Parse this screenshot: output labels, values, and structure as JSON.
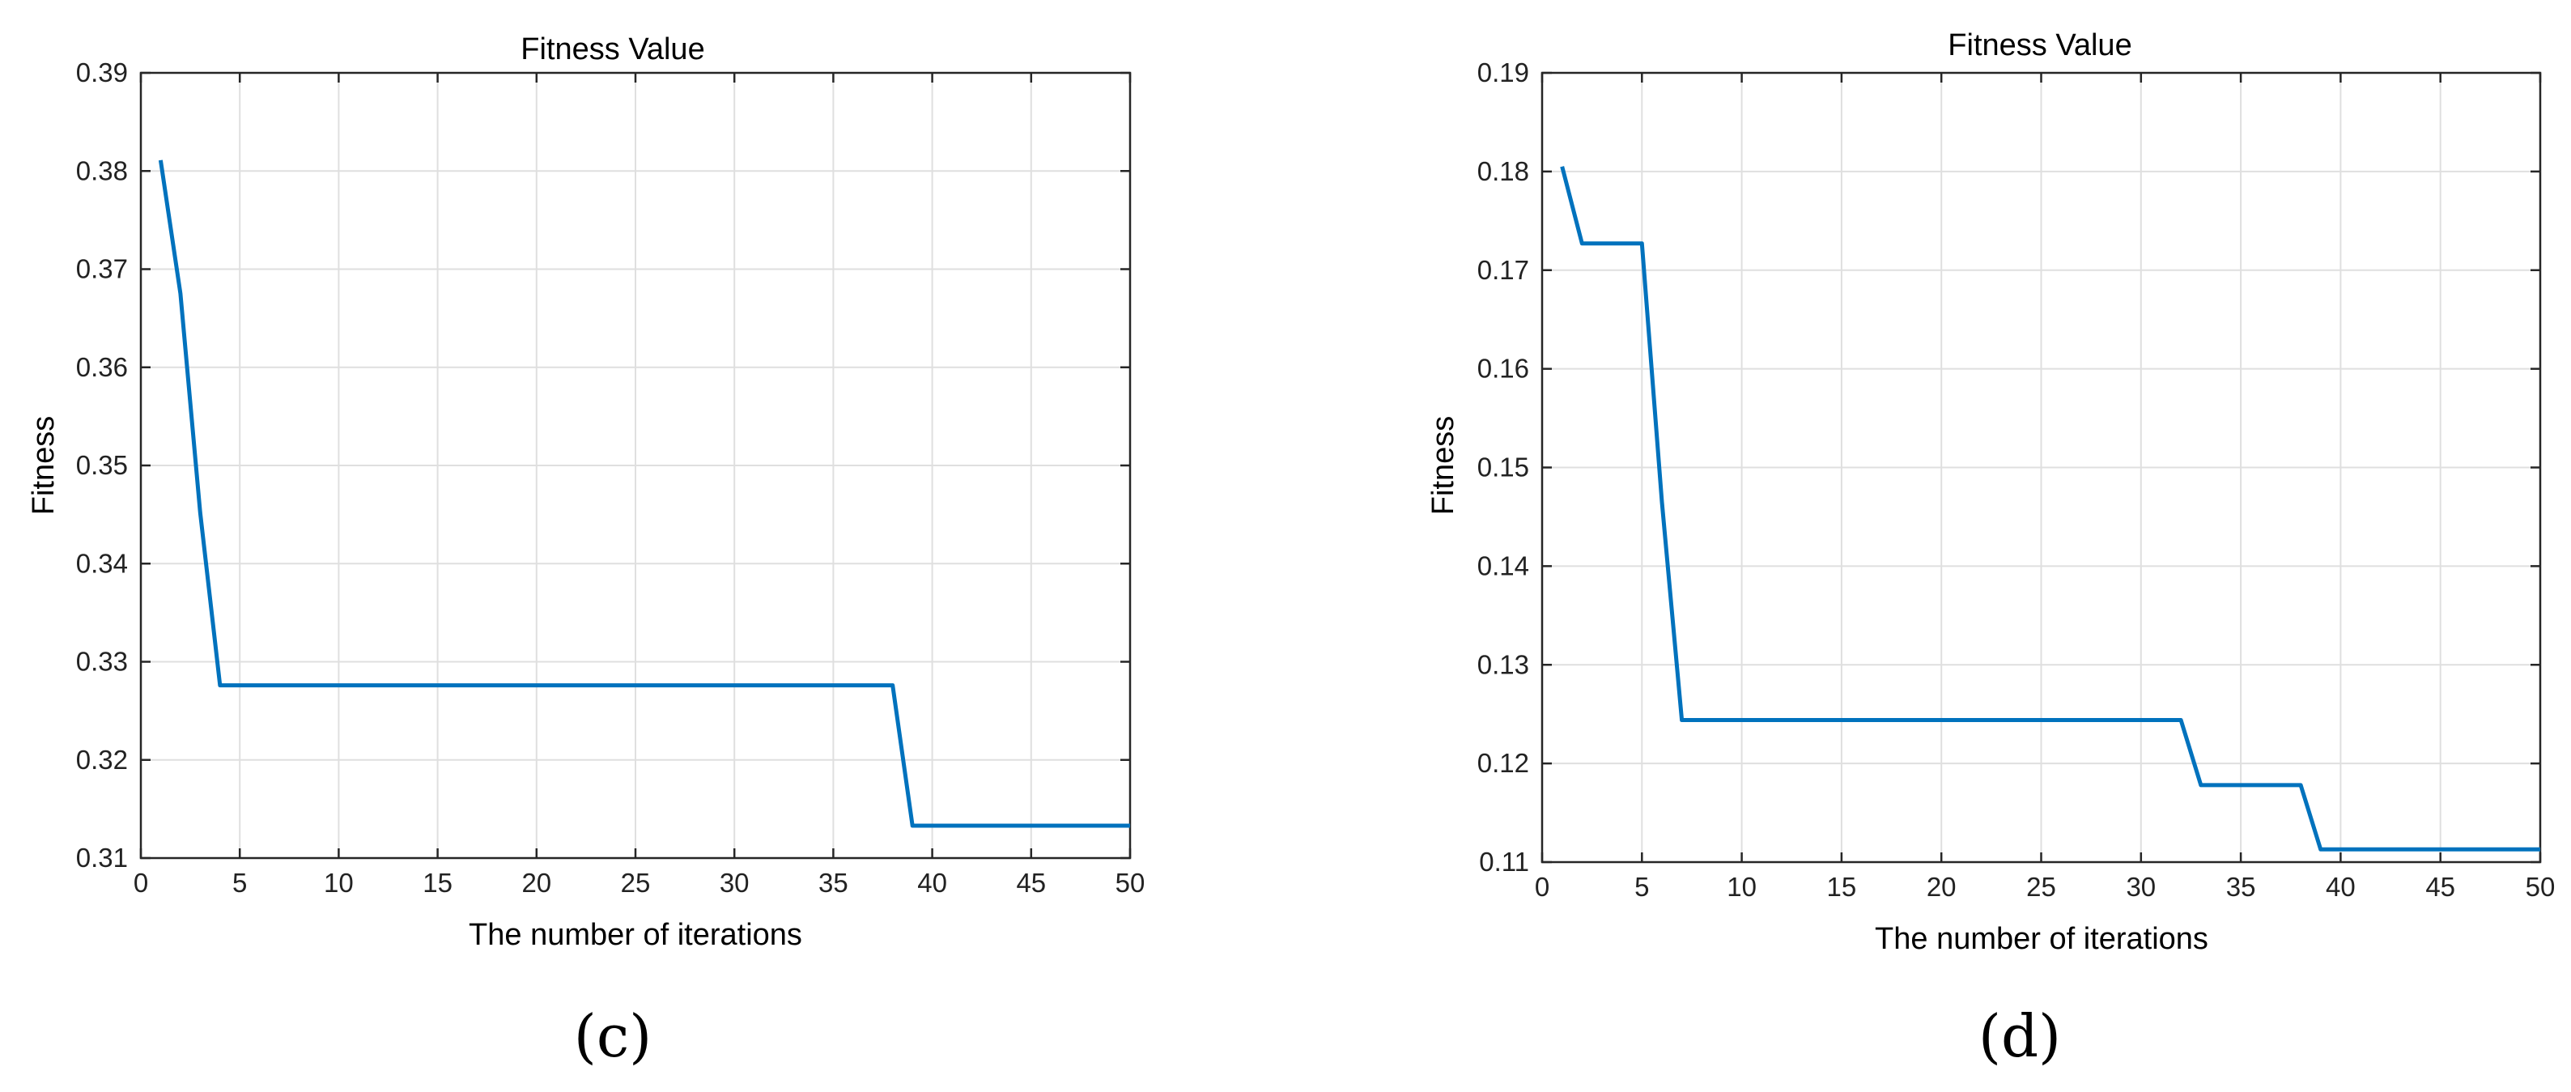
{
  "chart_data": [
    {
      "type": "line",
      "panel": "(c)",
      "title": "Fitness Value",
      "xlabel": "The number of iterations",
      "ylabel": "Fitness",
      "xlim": [
        0,
        50
      ],
      "ylim": [
        0.31,
        0.39
      ],
      "xticks": [
        0,
        5,
        10,
        15,
        20,
        25,
        30,
        35,
        40,
        45,
        50
      ],
      "yticks": [
        0.31,
        0.32,
        0.33,
        0.34,
        0.35,
        0.36,
        0.37,
        0.38,
        0.39
      ],
      "xtick_labels": [
        "0",
        "5",
        "10",
        "15",
        "20",
        "25",
        "30",
        "35",
        "40",
        "45",
        "50"
      ],
      "ytick_labels": [
        "0.31",
        "0.32",
        "0.33",
        "0.34",
        "0.35",
        "0.36",
        "0.37",
        "0.38",
        "0.39"
      ],
      "grid": true,
      "color": "#0072BD",
      "series": [
        {
          "x": [
            1,
            2,
            3,
            4,
            5,
            10,
            15,
            20,
            25,
            30,
            35,
            38,
            39,
            40,
            45,
            50
          ],
          "y": [
            0.3811,
            0.3675,
            0.3452,
            0.3276,
            0.3276,
            0.3276,
            0.3276,
            0.3276,
            0.3276,
            0.3276,
            0.3276,
            0.3276,
            0.3133,
            0.3133,
            0.3133,
            0.3133
          ]
        }
      ]
    },
    {
      "type": "line",
      "panel": "(d)",
      "title": "Fitness Value",
      "xlabel": "The number of iterations",
      "ylabel": "Fitness",
      "xlim": [
        0,
        50
      ],
      "ylim": [
        0.11,
        0.19
      ],
      "xticks": [
        0,
        5,
        10,
        15,
        20,
        25,
        30,
        35,
        40,
        45,
        50
      ],
      "yticks": [
        0.11,
        0.12,
        0.13,
        0.14,
        0.15,
        0.16,
        0.17,
        0.18,
        0.19
      ],
      "xtick_labels": [
        "0",
        "5",
        "10",
        "15",
        "20",
        "25",
        "30",
        "35",
        "40",
        "45",
        "50"
      ],
      "ytick_labels": [
        "0.11",
        "0.12",
        "0.13",
        "0.14",
        "0.15",
        "0.16",
        "0.17",
        "0.18",
        "0.19"
      ],
      "grid": true,
      "color": "#0072BD",
      "series": [
        {
          "x": [
            1,
            2,
            3,
            4,
            5,
            6,
            7,
            10,
            15,
            20,
            25,
            30,
            32,
            33,
            35,
            38,
            39,
            40,
            45,
            50
          ],
          "y": [
            0.1805,
            0.1727,
            0.1727,
            0.1727,
            0.1727,
            0.1465,
            0.1244,
            0.1244,
            0.1244,
            0.1244,
            0.1244,
            0.1244,
            0.1244,
            0.1178,
            0.1178,
            0.1178,
            0.1113,
            0.1113,
            0.1113,
            0.1113
          ]
        }
      ]
    }
  ]
}
